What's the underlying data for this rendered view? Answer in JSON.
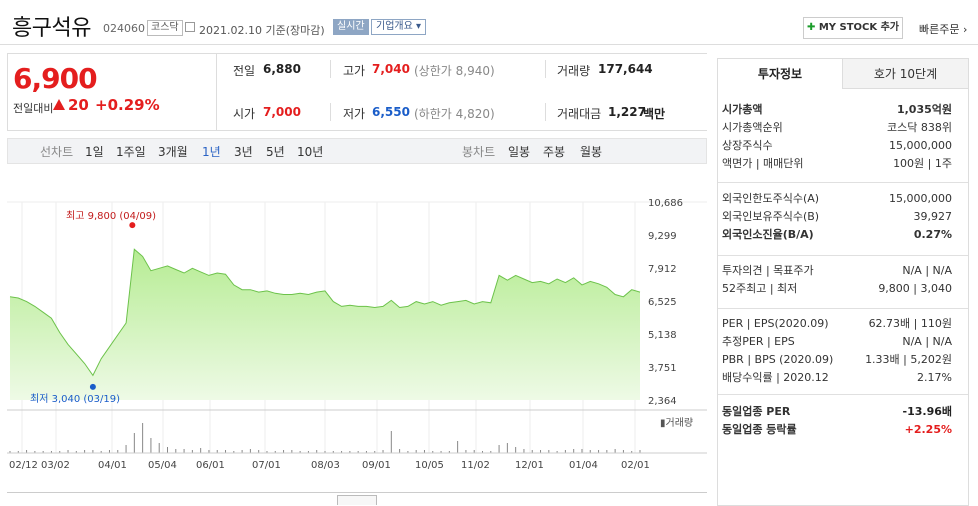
{
  "header": {
    "name": "흥구석유",
    "code": "024060",
    "market_badge": "코스닥",
    "date": "2021.02.10 기준(장마감)",
    "realtime_label": "실시간",
    "corp_label": "기업개요 ▾",
    "mystock_label": "MY STOCK 추가",
    "quick_order": "빠른주문 ›"
  },
  "price": {
    "current": "6,900",
    "prev_label": "전일대비",
    "change": "20",
    "change_pct": "+0.29%"
  },
  "stats": {
    "prev_label": "전일",
    "prev": "6,880",
    "high_label": "고가",
    "high": "7,040",
    "upper_limit": "(상한가 8,940)",
    "volume_label": "거래량",
    "volume": "177,644",
    "open_label": "시가",
    "open": "7,000",
    "low_label": "저가",
    "low": "6,550",
    "lower_limit": "(하한가 4,820)",
    "amount_label": "거래대금",
    "amount": "1,227",
    "amount_unit": "백만"
  },
  "period": {
    "line_label": "선차트",
    "line_options": [
      "1일",
      "1주일",
      "3개월",
      "1년",
      "3년",
      "5년",
      "10년"
    ],
    "selected": "1년",
    "candle_label": "봉차트",
    "candle_options": [
      "일봉",
      "주봉",
      "월봉"
    ]
  },
  "chart_data": {
    "type": "area",
    "y_ticks": [
      "10,686",
      "9,299",
      "7,912",
      "6,525",
      "5,138",
      "3,751",
      "2,364"
    ],
    "ylim": [
      2364,
      10686
    ],
    "x_ticks": [
      "02/12",
      "03/02",
      "04/01",
      "05/04",
      "06/01",
      "07/01",
      "08/03",
      "09/01",
      "10/05",
      "11/02",
      "12/01",
      "01/04",
      "02/01"
    ],
    "high_label": "최고 9,800 (04/09)",
    "low_label": "최저 3,040 (03/19)",
    "high_value": 9800,
    "low_value": 3040,
    "volume_label": "거래량",
    "values": [
      6700,
      6650,
      6500,
      6300,
      6050,
      5800,
      5200,
      4700,
      4300,
      3900,
      3400,
      4100,
      4600,
      5100,
      5600,
      8700,
      8400,
      7800,
      7900,
      8000,
      7850,
      7700,
      7900,
      7750,
      7600,
      7700,
      7650,
      7200,
      7000,
      7000,
      6900,
      6950,
      6850,
      6800,
      6800,
      6850,
      6800,
      6900,
      6950,
      6500,
      6300,
      6350,
      6300,
      6300,
      6250,
      6300,
      6550,
      6250,
      6300,
      6500,
      6400,
      6500,
      6350,
      6450,
      6500,
      6550,
      6400,
      6500,
      6450,
      7600,
      7400,
      7600,
      7450,
      7300,
      7350,
      7250,
      7450,
      7300,
      7500,
      7200,
      7350,
      7250,
      7100,
      6800,
      6700,
      7000,
      6900
    ],
    "volumes": [
      2,
      2,
      3,
      2,
      2,
      2,
      2,
      3,
      2,
      3,
      3,
      2,
      3,
      3,
      8,
      20,
      30,
      15,
      10,
      6,
      4,
      4,
      3,
      5,
      3,
      3,
      3,
      2,
      3,
      4,
      3,
      2,
      2,
      3,
      3,
      2,
      2,
      3,
      2,
      2,
      2,
      2,
      2,
      2,
      2,
      3,
      22,
      4,
      2,
      3,
      3,
      2,
      2,
      2,
      12,
      3,
      3,
      2,
      2,
      8,
      10,
      6,
      4,
      3,
      3,
      3,
      2,
      3,
      4,
      4,
      3,
      3,
      3,
      4,
      3,
      2,
      3
    ]
  },
  "panel": {
    "tab1": "투자정보",
    "tab2": "호가 10단계",
    "rows1": [
      {
        "k": "시가총액",
        "v": "1,035억원",
        "bold": true
      },
      {
        "k": "시가총액순위",
        "v": "코스닥 838위"
      },
      {
        "k": "상장주식수",
        "v": "15,000,000"
      },
      {
        "k": "액면가 | 매매단위",
        "v": "100원 | 1주"
      }
    ],
    "rows2": [
      {
        "k": "외국인한도주식수(A)",
        "v": "15,000,000"
      },
      {
        "k": "외국인보유주식수(B)",
        "v": "39,927"
      },
      {
        "k": "외국인소진율(B/A)",
        "v": "0.27%",
        "bold": true
      }
    ],
    "rows3": [
      {
        "k": "투자의견 | 목표주가",
        "v": "N/A | N/A"
      },
      {
        "k": "52주최고 | 최저",
        "v": "9,800 | 3,040"
      }
    ],
    "rows4": [
      {
        "k": "PER | EPS(2020.09)",
        "v": "62.73배 | 110원"
      },
      {
        "k": "추정PER | EPS",
        "v": "N/A | N/A"
      },
      {
        "k": "PBR | BPS (2020.09)",
        "v": "1.33배 | 5,202원"
      },
      {
        "k": "배당수익률 | 2020.12",
        "v": "2.17%"
      }
    ],
    "rows5": [
      {
        "k": "동일업종 PER",
        "v": "-13.96배"
      },
      {
        "k": "동일업종 등락률",
        "v": "+2.25%"
      }
    ]
  },
  "colors": {
    "up": "#e41e1e",
    "down": "#1a5dc9",
    "area_fill": "#c9f0b3",
    "area_line": "#6cc24a"
  }
}
